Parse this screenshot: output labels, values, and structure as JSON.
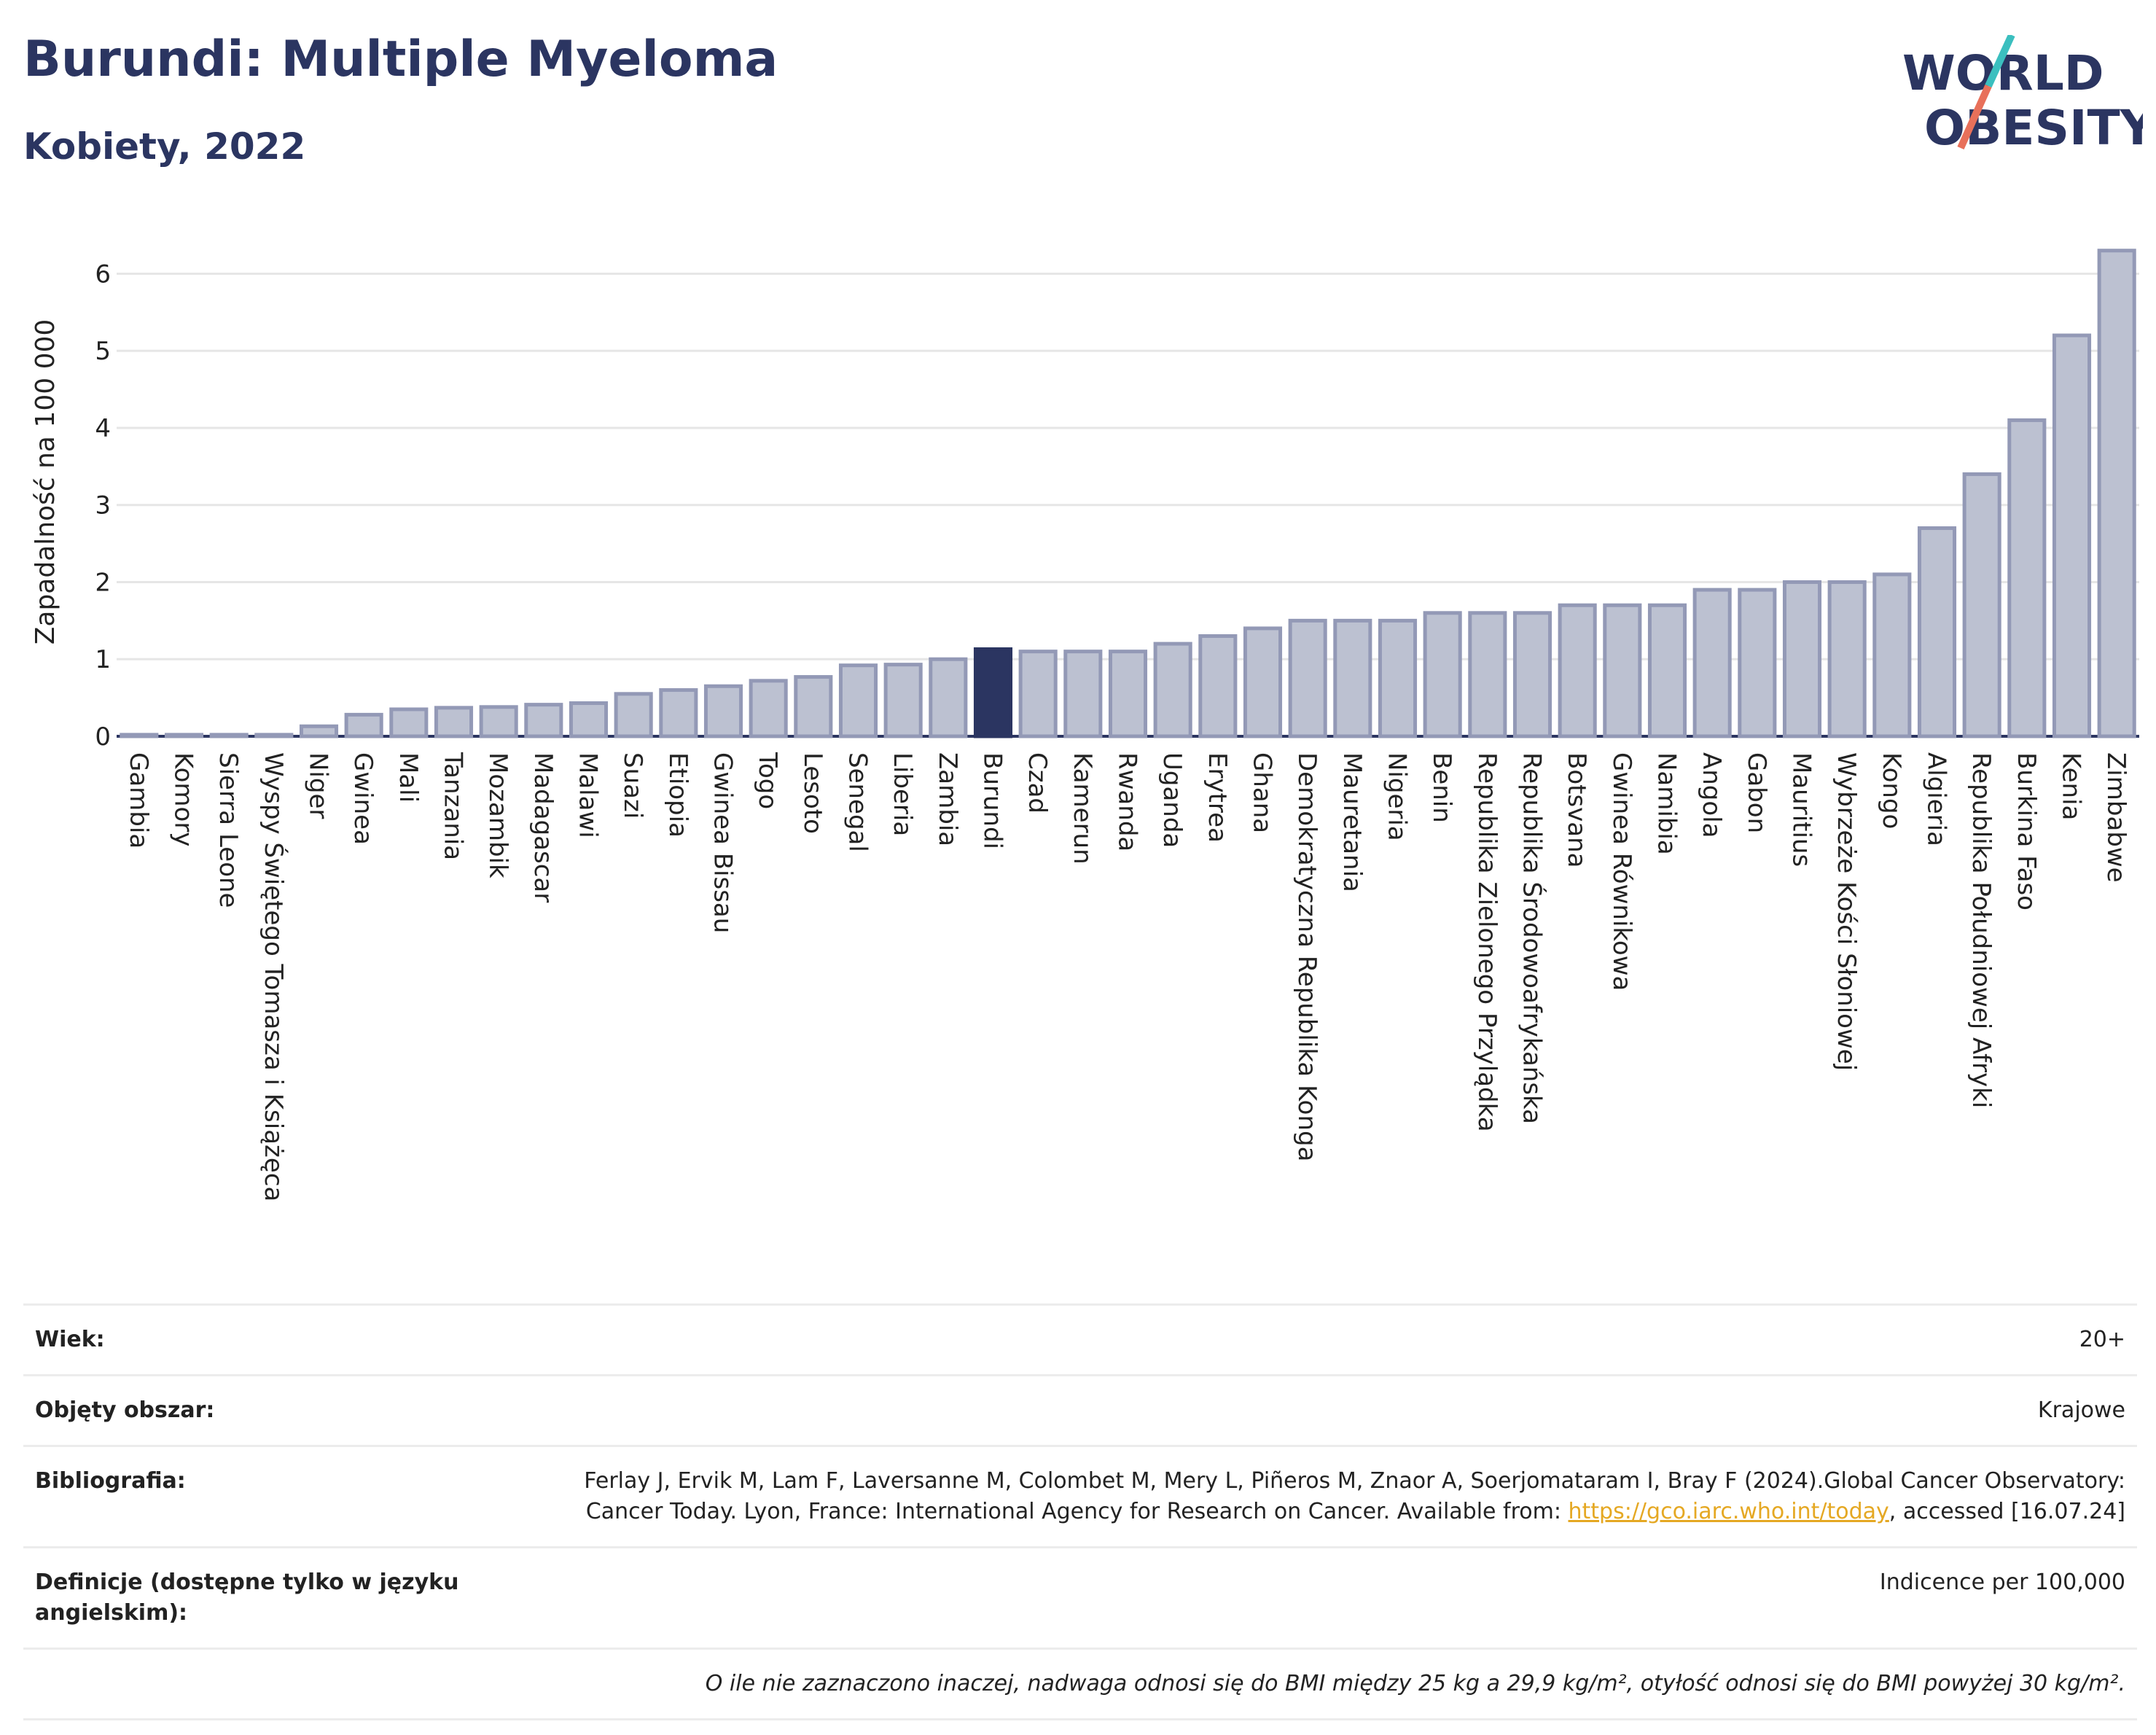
{
  "header": {
    "title": "Burundi: Multiple Myeloma",
    "subtitle": "Kobiety, 2022",
    "logo_line1": "WORLD",
    "logo_line2": "OBESITY"
  },
  "colors": {
    "bar": "#bcc1d1",
    "bar_stroke": "#9399b6",
    "highlight": "#2b3561",
    "title": "#2b3561",
    "grid": "#e6e6e6",
    "link": "#e5a823"
  },
  "chart_data": {
    "type": "bar",
    "ylabel": "Zapadalność na 100 000",
    "ylim": [
      0,
      6.6
    ],
    "yticks": [
      0,
      1,
      2,
      3,
      4,
      5,
      6
    ],
    "grid": true,
    "highlight": "Burundi",
    "categories": [
      "Gambia",
      "Komory",
      "Sierra Leone",
      "Wyspy Świętego Tomasza i Książęca",
      "Niger",
      "Gwinea",
      "Mali",
      "Tanzania",
      "Mozambik",
      "Madagascar",
      "Malawi",
      "Suazi",
      "Etiopia",
      "Gwinea Bissau",
      "Togo",
      "Lesoto",
      "Senegal",
      "Liberia",
      "Zambia",
      "Burundi",
      "Czad",
      "Kamerun",
      "Rwanda",
      "Uganda",
      "Erytrea",
      "Ghana",
      "Demokratyczna Republika Konga",
      "Mauretania",
      "Nigeria",
      "Benin",
      "Republika Zielonego Przylądka",
      "Republika Środowoafrykańska",
      "Botsvana",
      "Gwinea Równikowa",
      "Namibia",
      "Angola",
      "Gabon",
      "Mauritius",
      "Wybrzeże Kości Słoniowej",
      "Kongo",
      "Algieria",
      "Republika Południowej Afryki",
      "Burkina Faso",
      "Kenia",
      "Zimbabwe"
    ],
    "values": [
      0.02,
      0.02,
      0.02,
      0.02,
      0.13,
      0.28,
      0.35,
      0.37,
      0.38,
      0.41,
      0.43,
      0.55,
      0.6,
      0.65,
      0.72,
      0.77,
      0.92,
      0.93,
      1.0,
      1.13,
      1.1,
      1.1,
      1.1,
      1.2,
      1.3,
      1.4,
      1.5,
      1.5,
      1.5,
      1.6,
      1.6,
      1.6,
      1.7,
      1.7,
      1.7,
      1.9,
      1.9,
      2.0,
      2.0,
      2.1,
      2.7,
      3.4,
      4.1,
      5.2,
      6.3
    ]
  },
  "meta": {
    "age_label": "Wiek:",
    "age_value": "20+",
    "area_label": "Objęty obszar:",
    "area_value": "Krajowe",
    "bib_label": "Bibliografia:",
    "bib_text": "Ferlay J, Ervik M, Lam F, Laversanne M, Colombet M, Mery L, Piñeros M, Znaor A, Soerjomataram I, Bray F (2024).Global Cancer Observatory: Cancer Today. Lyon, France: International Agency for Research on Cancer. Available from: ",
    "bib_link": "https://gco.iarc.who.int/today",
    "bib_tail": ", accessed [16.07.24]",
    "def_label": "Definicje (dostępne tylko w języku angielskim):",
    "def_value": "Indicence per 100,000",
    "note": "O ile nie zaznaczono inaczej, nadwaga odnosi się do BMI między 25 kg a 29,9 kg/m², otyłość odnosi się do BMI powyżej 30 kg/m²."
  }
}
